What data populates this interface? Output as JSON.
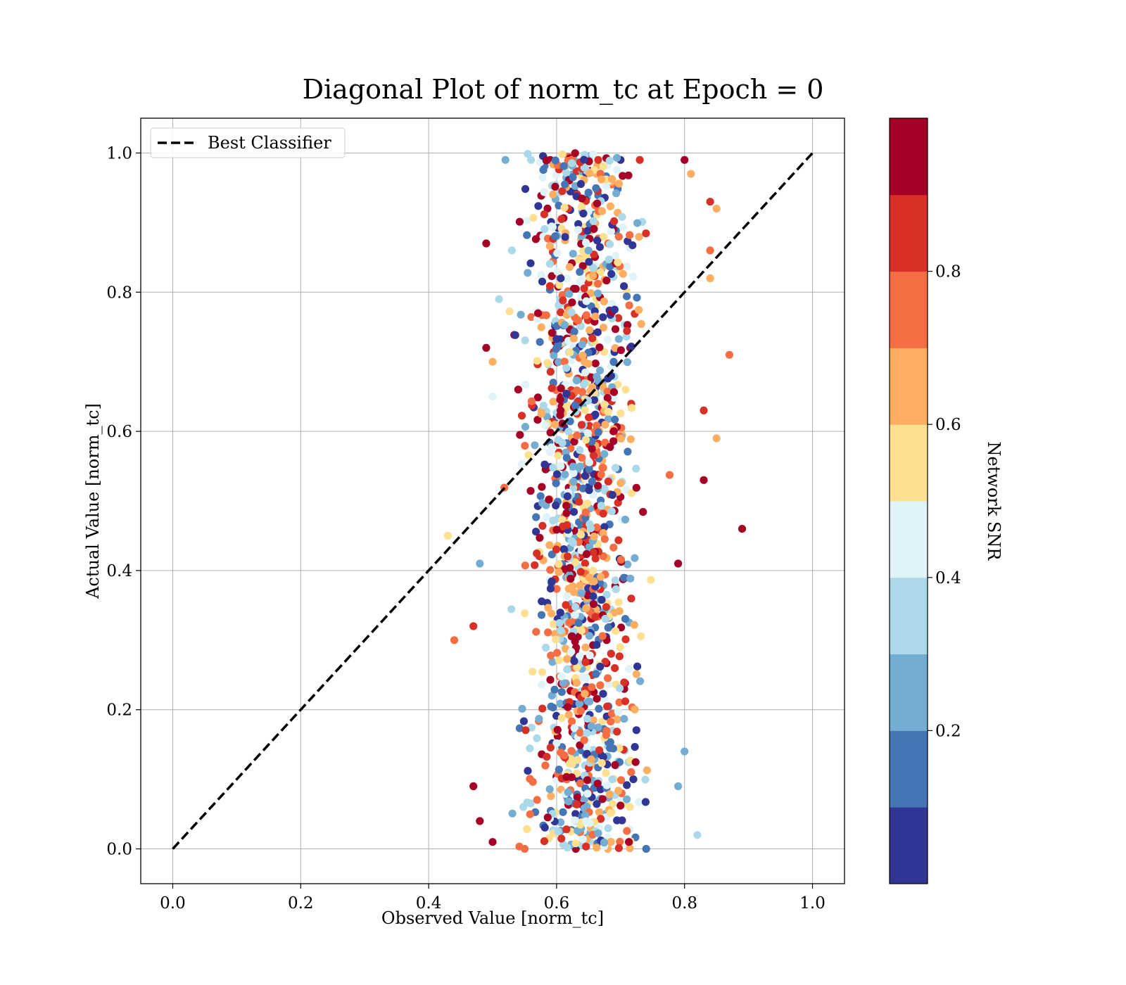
{
  "chart_data": {
    "type": "scatter",
    "title": "Diagonal Plot of norm_tc at Epoch = 0",
    "xlabel": "Observed Value [norm_tc]",
    "ylabel": "Actual Value [norm_tc]",
    "xlim": [
      -0.05,
      1.05
    ],
    "ylim": [
      -0.05,
      1.05
    ],
    "xticks": [
      "0.0",
      "0.2",
      "0.4",
      "0.6",
      "0.8",
      "1.0"
    ],
    "yticks": [
      "0.0",
      "0.2",
      "0.4",
      "0.6",
      "0.8",
      "1.0"
    ],
    "grid": true,
    "legend": {
      "placement": "top-left",
      "entries": [
        "Best Classifier"
      ]
    },
    "reference_line": {
      "label": "Best Classifier",
      "style": "dashed",
      "color": "#000000",
      "from": [
        0,
        0
      ],
      "to": [
        1,
        1
      ]
    },
    "colorbar": {
      "label": "Network SNR",
      "ticks": [
        "0.2",
        "0.4",
        "0.6",
        "0.8"
      ],
      "tick_values": [
        0.2,
        0.4,
        0.6,
        0.8
      ],
      "range": [
        0,
        1
      ],
      "colors": [
        "#313695",
        "#4575b4",
        "#74add1",
        "#abd9e9",
        "#e0f3f8",
        "#fee090",
        "#fdae61",
        "#f46d43",
        "#d73027",
        "#a50026"
      ]
    },
    "scatter_summary": {
      "x_range": [
        0.43,
        0.88
      ],
      "x_center": 0.64,
      "y_range": [
        0.0,
        1.0
      ],
      "color_range": [
        0.0,
        1.0
      ],
      "approx_point_count": 1500
    },
    "points_sample": [
      [
        0.52,
        0.99,
        0.2
      ],
      [
        0.56,
        0.99,
        0.3
      ],
      [
        0.59,
        0.99,
        0.95
      ],
      [
        0.65,
        0.99,
        0.55
      ],
      [
        0.7,
        0.99,
        0.05
      ],
      [
        0.73,
        0.99,
        0.85
      ],
      [
        0.8,
        0.99,
        0.95
      ],
      [
        0.81,
        0.97,
        0.6
      ],
      [
        0.84,
        0.93,
        0.85
      ],
      [
        0.85,
        0.92,
        0.6
      ],
      [
        0.49,
        0.87,
        0.95
      ],
      [
        0.53,
        0.86,
        0.35
      ],
      [
        0.84,
        0.86,
        0.7
      ],
      [
        0.84,
        0.82,
        0.65
      ],
      [
        0.51,
        0.79,
        0.3
      ],
      [
        0.87,
        0.71,
        0.7
      ],
      [
        0.49,
        0.72,
        0.95
      ],
      [
        0.5,
        0.7,
        0.65
      ],
      [
        0.5,
        0.65,
        0.45
      ],
      [
        0.54,
        0.66,
        0.95
      ],
      [
        0.83,
        0.53,
        0.95
      ],
      [
        0.89,
        0.46,
        0.95
      ],
      [
        0.43,
        0.45,
        0.55
      ],
      [
        0.79,
        0.41,
        0.95
      ],
      [
        0.48,
        0.41,
        0.25
      ],
      [
        0.44,
        0.3,
        0.75
      ],
      [
        0.47,
        0.32,
        0.85
      ],
      [
        0.85,
        0.59,
        0.65
      ],
      [
        0.83,
        0.63,
        0.85
      ],
      [
        0.8,
        0.14,
        0.25
      ],
      [
        0.79,
        0.09,
        0.25
      ],
      [
        0.82,
        0.02,
        0.35
      ],
      [
        0.74,
        0.0,
        0.15
      ],
      [
        0.55,
        0.0,
        0.75
      ],
      [
        0.63,
        0.0,
        0.95
      ],
      [
        0.68,
        0.0,
        0.6
      ],
      [
        0.47,
        0.09,
        0.95
      ],
      [
        0.48,
        0.04,
        0.95
      ],
      [
        0.5,
        0.01,
        0.9
      ],
      [
        0.72,
        0.1,
        0.05
      ]
    ]
  }
}
